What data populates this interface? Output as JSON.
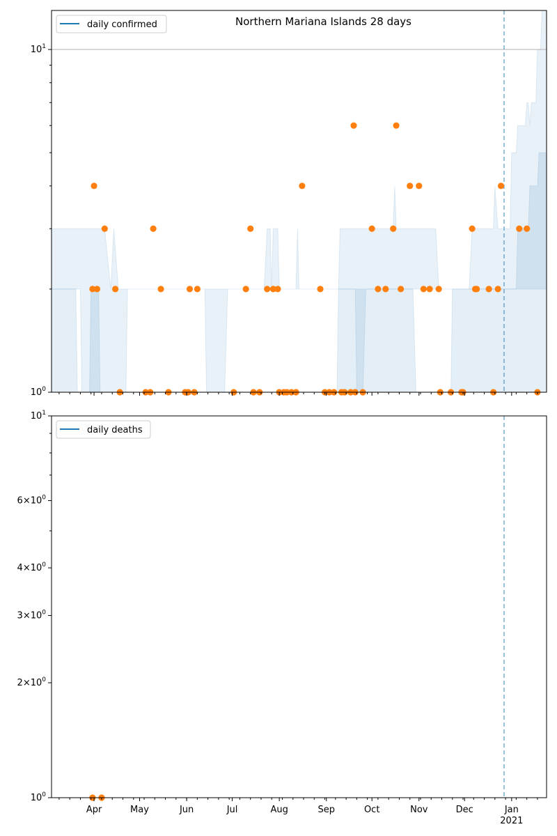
{
  "chart_data": [
    {
      "type": "scatter",
      "title": "Northern Mariana Islands 28 days",
      "yscale": "log",
      "ylim": [
        1,
        13
      ],
      "xlim": [
        "2020-03-04",
        "2021-01-24"
      ],
      "x_ticks": [
        "Apr",
        "May",
        "Jun",
        "Jul",
        "Aug",
        "Sep",
        "Oct",
        "Nov",
        "Dec",
        "Jan"
      ],
      "x_tick_year": "2021",
      "y_ticks": [
        {
          "value": 1,
          "label_base": "10",
          "label_exp": "0"
        },
        {
          "value": 10,
          "label_base": "10",
          "label_exp": "1"
        }
      ],
      "grid": "horizontal at 10^1",
      "legend": {
        "entries": [
          "daily confirmed"
        ],
        "placement": "upper-left",
        "color": "#1f77b4"
      },
      "vline": {
        "date": "2020-12-27",
        "color": "#1f77b4",
        "style": "dashed"
      },
      "series": [
        {
          "name": "daily confirmed",
          "color": "#ff7f0e",
          "points": [
            {
              "x": "2020-03-31",
              "y": 2
            },
            {
              "x": "2020-04-01",
              "y": 4
            },
            {
              "x": "2020-04-03",
              "y": 2
            },
            {
              "x": "2020-04-08",
              "y": 3
            },
            {
              "x": "2020-04-15",
              "y": 2
            },
            {
              "x": "2020-04-18",
              "y": 1
            },
            {
              "x": "2020-05-05",
              "y": 1
            },
            {
              "x": "2020-05-08",
              "y": 1
            },
            {
              "x": "2020-05-10",
              "y": 3
            },
            {
              "x": "2020-05-15",
              "y": 2
            },
            {
              "x": "2020-05-20",
              "y": 1
            },
            {
              "x": "2020-05-31",
              "y": 1
            },
            {
              "x": "2020-06-02",
              "y": 1
            },
            {
              "x": "2020-06-03",
              "y": 2
            },
            {
              "x": "2020-06-06",
              "y": 1
            },
            {
              "x": "2020-06-08",
              "y": 2
            },
            {
              "x": "2020-07-02",
              "y": 1
            },
            {
              "x": "2020-07-10",
              "y": 2
            },
            {
              "x": "2020-07-13",
              "y": 3
            },
            {
              "x": "2020-07-15",
              "y": 1
            },
            {
              "x": "2020-07-19",
              "y": 1
            },
            {
              "x": "2020-07-24",
              "y": 2
            },
            {
              "x": "2020-07-28",
              "y": 2
            },
            {
              "x": "2020-07-31",
              "y": 2
            },
            {
              "x": "2020-08-01",
              "y": 1
            },
            {
              "x": "2020-08-04",
              "y": 1
            },
            {
              "x": "2020-08-06",
              "y": 1
            },
            {
              "x": "2020-08-09",
              "y": 1
            },
            {
              "x": "2020-08-12",
              "y": 1
            },
            {
              "x": "2020-08-16",
              "y": 4
            },
            {
              "x": "2020-08-28",
              "y": 2
            },
            {
              "x": "2020-08-31",
              "y": 1
            },
            {
              "x": "2020-09-03",
              "y": 1
            },
            {
              "x": "2020-09-06",
              "y": 1
            },
            {
              "x": "2020-09-11",
              "y": 1
            },
            {
              "x": "2020-09-13",
              "y": 1
            },
            {
              "x": "2020-09-17",
              "y": 1
            },
            {
              "x": "2020-09-19",
              "y": 6
            },
            {
              "x": "2020-09-20",
              "y": 1
            },
            {
              "x": "2020-09-25",
              "y": 1
            },
            {
              "x": "2020-10-01",
              "y": 3
            },
            {
              "x": "2020-10-05",
              "y": 2
            },
            {
              "x": "2020-10-10",
              "y": 2
            },
            {
              "x": "2020-10-15",
              "y": 3
            },
            {
              "x": "2020-10-17",
              "y": 6
            },
            {
              "x": "2020-10-20",
              "y": 2
            },
            {
              "x": "2020-10-26",
              "y": 4
            },
            {
              "x": "2020-11-01",
              "y": 4
            },
            {
              "x": "2020-11-04",
              "y": 2
            },
            {
              "x": "2020-11-08",
              "y": 2
            },
            {
              "x": "2020-11-14",
              "y": 2
            },
            {
              "x": "2020-11-15",
              "y": 1
            },
            {
              "x": "2020-11-22",
              "y": 1
            },
            {
              "x": "2020-11-29",
              "y": 1
            },
            {
              "x": "2020-11-30",
              "y": 1
            },
            {
              "x": "2020-12-06",
              "y": 3
            },
            {
              "x": "2020-12-08",
              "y": 2
            },
            {
              "x": "2020-12-09",
              "y": 2
            },
            {
              "x": "2020-12-17",
              "y": 2
            },
            {
              "x": "2020-12-20",
              "y": 1
            },
            {
              "x": "2020-12-23",
              "y": 2
            },
            {
              "x": "2020-12-25",
              "y": 4
            },
            {
              "x": "2021-01-06",
              "y": 3
            },
            {
              "x": "2021-01-11",
              "y": 3
            },
            {
              "x": "2021-01-18",
              "y": 1
            }
          ]
        }
      ],
      "bands": [
        {
          "name": "outer band",
          "color": "#1f77b4",
          "opacity": 0.1,
          "upper": [
            [
              "2020-03-04",
              3
            ],
            [
              "2020-04-04",
              3
            ],
            [
              "2020-04-08",
              3
            ],
            [
              "2020-04-12",
              2
            ],
            [
              "2020-04-14",
              3
            ],
            [
              "2020-04-17",
              2
            ],
            [
              "2020-06-13",
              2
            ],
            [
              "2020-06-14",
              1
            ],
            [
              "2020-06-26",
              1
            ],
            [
              "2020-06-28",
              2
            ],
            [
              "2020-07-22",
              2
            ],
            [
              "2020-07-24",
              3
            ],
            [
              "2020-07-26",
              3
            ],
            [
              "2020-07-27",
              2
            ],
            [
              "2020-07-28",
              3
            ],
            [
              "2020-07-31",
              3
            ],
            [
              "2020-08-01",
              2
            ],
            [
              "2020-08-12",
              2
            ],
            [
              "2020-08-13",
              3
            ],
            [
              "2020-08-14",
              2
            ],
            [
              "2020-09-09",
              2
            ],
            [
              "2020-09-10",
              3
            ],
            [
              "2020-10-07",
              3
            ],
            [
              "2020-10-10",
              3
            ],
            [
              "2020-10-12",
              3
            ],
            [
              "2020-10-15",
              3
            ],
            [
              "2020-10-16",
              4
            ],
            [
              "2020-10-17",
              3
            ],
            [
              "2020-11-12",
              3
            ],
            [
              "2020-11-14",
              2
            ],
            [
              "2020-12-04",
              2
            ],
            [
              "2020-12-06",
              3
            ],
            [
              "2020-12-20",
              3
            ],
            [
              "2020-12-21",
              4
            ],
            [
              "2020-12-23",
              3
            ],
            [
              "2020-12-31",
              3
            ],
            [
              "2021-01-01",
              5
            ],
            [
              "2021-01-04",
              5
            ],
            [
              "2021-01-05",
              6
            ],
            [
              "2021-01-10",
              6
            ],
            [
              "2021-01-11",
              7
            ],
            [
              "2021-01-12",
              7
            ],
            [
              "2021-01-13",
              6
            ],
            [
              "2021-01-14",
              7
            ],
            [
              "2021-01-17",
              7
            ],
            [
              "2021-01-18",
              10
            ],
            [
              "2021-01-20",
              10
            ],
            [
              "2021-01-21",
              13
            ],
            [
              "2021-01-24",
              13
            ]
          ],
          "lower": [
            [
              "2020-03-04",
              2
            ],
            [
              "2020-03-23",
              2
            ],
            [
              "2020-03-24",
              1
            ],
            [
              "2020-04-22",
              1
            ],
            [
              "2020-04-23",
              2
            ],
            [
              "2020-09-18",
              2
            ],
            [
              "2020-09-20",
              2
            ],
            [
              "2020-09-21",
              1
            ],
            [
              "2020-09-25",
              1
            ],
            [
              "2020-09-27",
              2
            ],
            [
              "2021-01-24",
              2
            ]
          ]
        },
        {
          "name": "inner band",
          "color": "#1f77b4",
          "opacity": 0.12,
          "upper": [
            [
              "2020-03-04",
              2
            ],
            [
              "2020-03-20",
              2
            ],
            [
              "2020-03-21",
              1
            ],
            [
              "2020-03-29",
              1
            ],
            [
              "2020-03-30",
              2
            ],
            [
              "2020-04-04",
              2
            ],
            [
              "2020-04-05",
              1
            ],
            [
              "2020-09-08",
              1
            ],
            [
              "2020-09-09",
              2
            ],
            [
              "2020-10-28",
              2
            ],
            [
              "2020-10-30",
              1
            ],
            [
              "2020-11-22",
              1
            ],
            [
              "2020-11-23",
              2
            ],
            [
              "2021-01-04",
              2
            ],
            [
              "2021-01-05",
              3
            ],
            [
              "2021-01-12",
              3
            ],
            [
              "2021-01-13",
              4
            ],
            [
              "2021-01-18",
              4
            ],
            [
              "2021-01-19",
              5
            ],
            [
              "2021-01-24",
              5
            ]
          ],
          "lower": [
            [
              "2020-03-04",
              1
            ],
            [
              "2021-01-24",
              1
            ]
          ]
        }
      ]
    },
    {
      "type": "scatter",
      "yscale": "log",
      "ylim": [
        1,
        10
      ],
      "xlim": [
        "2020-03-04",
        "2021-01-24"
      ],
      "x_ticks": [
        "Apr",
        "May",
        "Jun",
        "Jul",
        "Aug",
        "Sep",
        "Oct",
        "Nov",
        "Dec",
        "Jan"
      ],
      "x_tick_year": "2021",
      "y_ticks": [
        {
          "value": 1,
          "label_base": "10",
          "label_exp": "0"
        },
        {
          "value": 2,
          "label_base": "2×10",
          "label_exp": "0"
        },
        {
          "value": 3,
          "label_base": "3×10",
          "label_exp": "0"
        },
        {
          "value": 4,
          "label_base": "4×10",
          "label_exp": "0"
        },
        {
          "value": 6,
          "label_base": "6×10",
          "label_exp": "0"
        },
        {
          "value": 10,
          "label_base": "10",
          "label_exp": "1"
        }
      ],
      "legend": {
        "entries": [
          "daily deaths"
        ],
        "placement": "upper-left",
        "color": "#1f77b4"
      },
      "vline": {
        "date": "2020-12-27",
        "color": "#1f77b4",
        "style": "dashed"
      },
      "series": [
        {
          "name": "daily deaths",
          "color": "#ff7f0e",
          "points": [
            {
              "x": "2020-03-31",
              "y": 1
            },
            {
              "x": "2020-04-06",
              "y": 1
            }
          ]
        }
      ]
    }
  ]
}
